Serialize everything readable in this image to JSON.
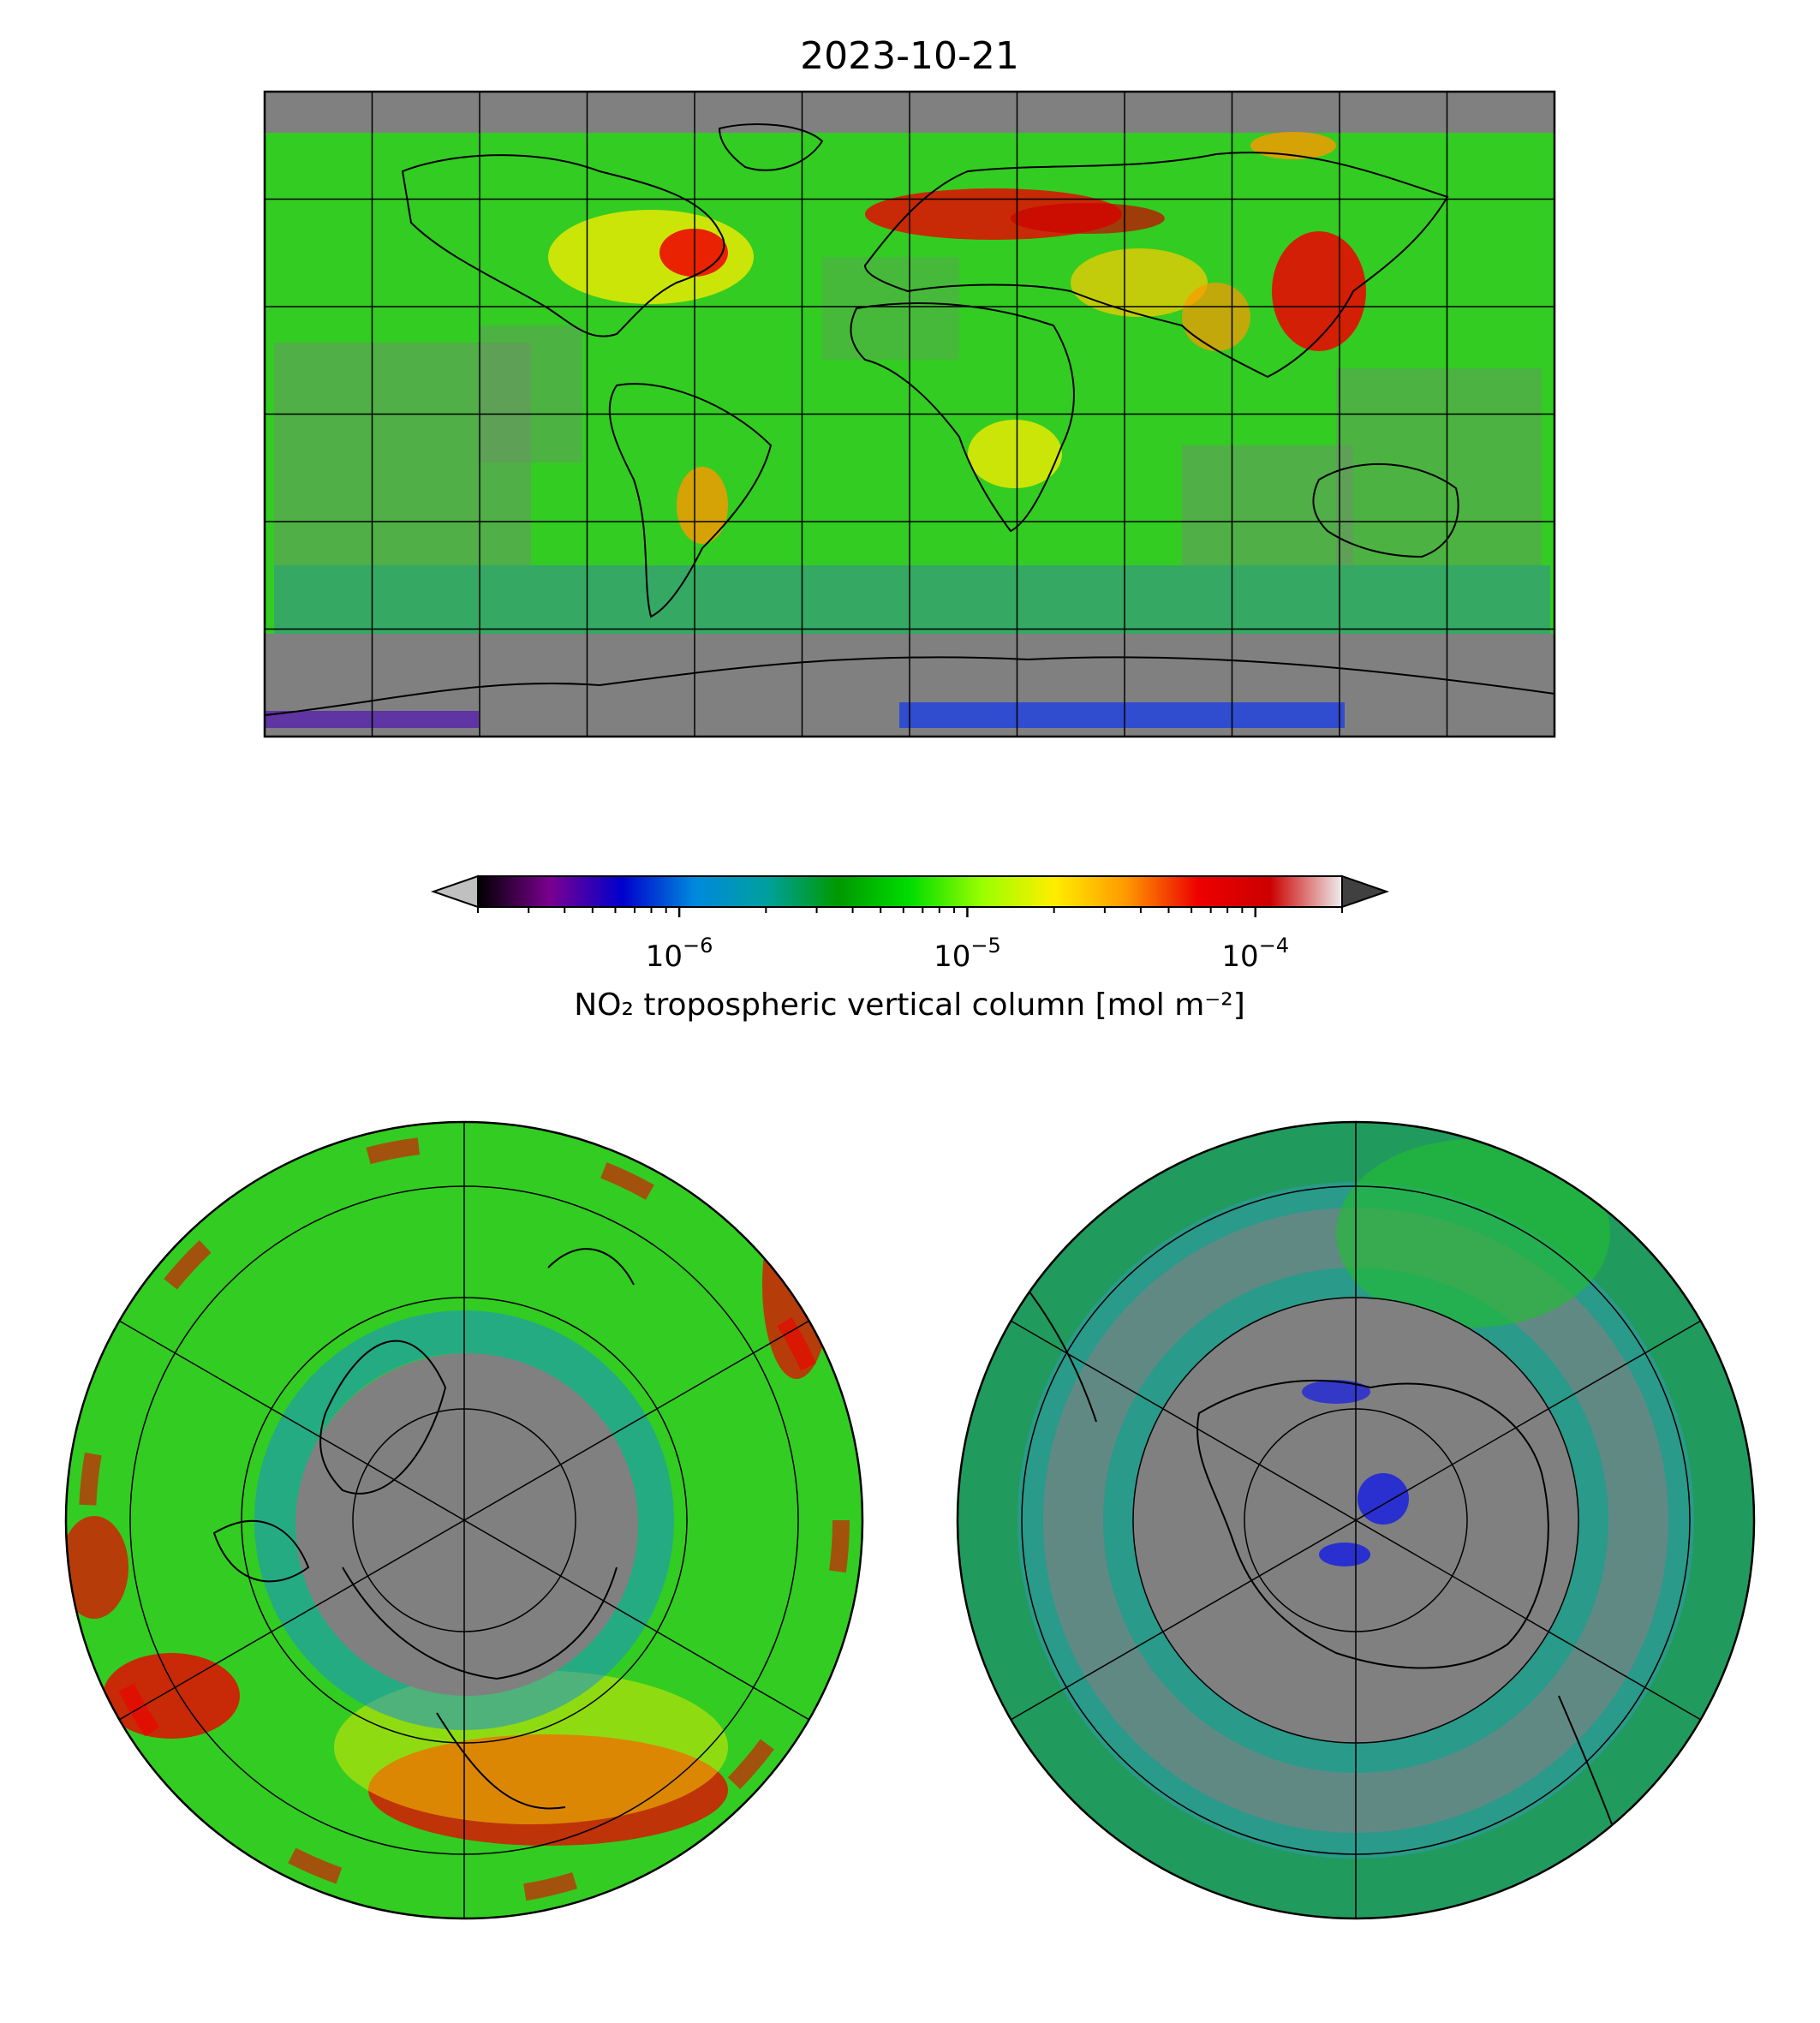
{
  "figure": {
    "title": "2023-10-21"
  },
  "colorbar": {
    "label": "NO₂ tropospheric vertical column [mol m⁻²]",
    "scale": "log",
    "range": [
      2e-07,
      0.0002
    ],
    "extend": "both",
    "under_color": "#c0c0c0",
    "over_color": "#404040",
    "ticks": [
      {
        "base": "10",
        "exp": "−6",
        "value": 1e-06
      },
      {
        "base": "10",
        "exp": "−5",
        "value": 1e-05
      },
      {
        "base": "10",
        "exp": "−4",
        "value": 0.0001
      }
    ],
    "colors": [
      "#000000",
      "#7a0090",
      "#0000cc",
      "#0088dd",
      "#00a0a0",
      "#009900",
      "#00dd00",
      "#99ff00",
      "#ffee00",
      "#ff9900",
      "#ee0000",
      "#cc0000",
      "#eeeeee"
    ]
  },
  "maps": [
    {
      "id": "global",
      "projection": "PlateCarree",
      "extent": "global"
    },
    {
      "id": "north",
      "projection": "NorthPolarStereo"
    },
    {
      "id": "south",
      "projection": "SouthPolarStereo"
    }
  ],
  "colors": {
    "no_data": "#808080",
    "background_field": "#33cc22",
    "coastline": "#000000",
    "gridline": "#000000"
  }
}
